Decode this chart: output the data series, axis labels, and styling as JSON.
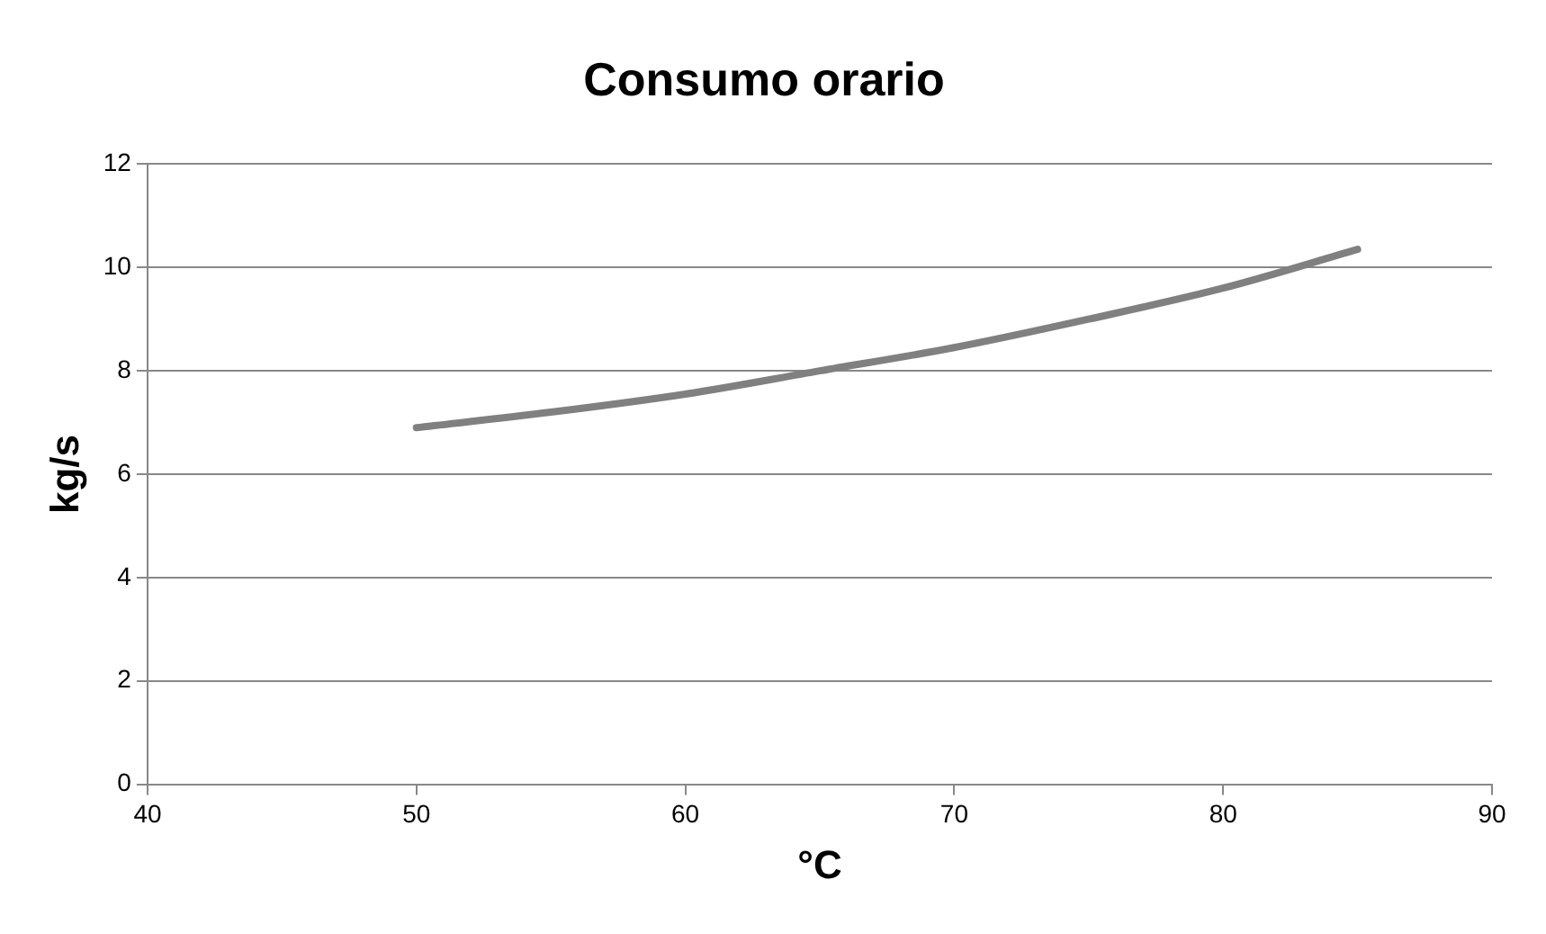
{
  "chart_data": {
    "type": "line",
    "title": "Consumo orario",
    "xlabel": "°C",
    "ylabel": "kg/s",
    "x": [
      50,
      55,
      60,
      65,
      70,
      75,
      80,
      85
    ],
    "series": [
      {
        "color": "#808080",
        "values": [
          6.9,
          7.2,
          7.55,
          8.0,
          8.45,
          9.0,
          9.6,
          10.35
        ]
      }
    ],
    "xlim": [
      40,
      90
    ],
    "xticks": [
      40,
      50,
      60,
      70,
      80,
      90
    ],
    "ylim": [
      0,
      12
    ],
    "yticks": [
      0,
      2,
      4,
      6,
      8,
      10,
      12
    ],
    "grid": "y",
    "legend": false,
    "marker": "none",
    "line_style": "solid"
  }
}
